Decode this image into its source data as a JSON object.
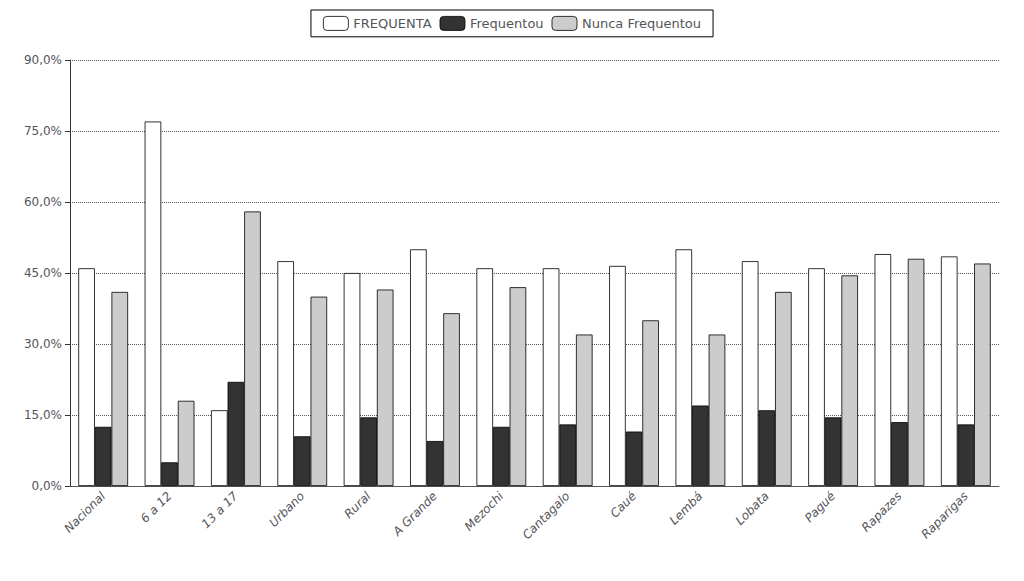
{
  "chart_data": {
    "type": "bar",
    "categories": [
      "Nacional",
      "6 a 12",
      "13 a 17",
      "Urbano",
      "Rural",
      "A Grande",
      "Mezochi",
      "Cantagalo",
      "Caué",
      "Lembá",
      "Lobata",
      "Pagué",
      "Rapazes",
      "Raparigas"
    ],
    "series": [
      {
        "name": "FREQUENTA",
        "color": "#ffffff",
        "values": [
          46.0,
          77.0,
          16.0,
          47.5,
          45.0,
          50.0,
          46.0,
          46.0,
          46.5,
          50.0,
          47.5,
          46.0,
          49.0,
          48.5
        ]
      },
      {
        "name": "Frequentou",
        "color": "#333333",
        "values": [
          12.5,
          5.0,
          22.0,
          10.5,
          14.5,
          9.5,
          12.5,
          13.0,
          11.5,
          17.0,
          16.0,
          14.5,
          13.5,
          13.0
        ]
      },
      {
        "name": "Nunca Frequentou",
        "color": "#cccccc",
        "values": [
          41.0,
          18.0,
          58.0,
          40.0,
          41.5,
          36.5,
          42.0,
          32.0,
          35.0,
          32.0,
          41.0,
          44.5,
          48.0,
          47.0
        ]
      }
    ],
    "ylim": [
      0,
      90
    ],
    "yticks": [
      {
        "value": 0,
        "label": "0,0%"
      },
      {
        "value": 15,
        "label": "15,0%"
      },
      {
        "value": 30,
        "label": "30,0%"
      },
      {
        "value": 45,
        "label": "45,0%"
      },
      {
        "value": 60,
        "label": "60,0%"
      },
      {
        "value": 75,
        "label": "75,0%"
      },
      {
        "value": 90,
        "label": "90,0%"
      }
    ],
    "grid": true,
    "legend": "top"
  }
}
